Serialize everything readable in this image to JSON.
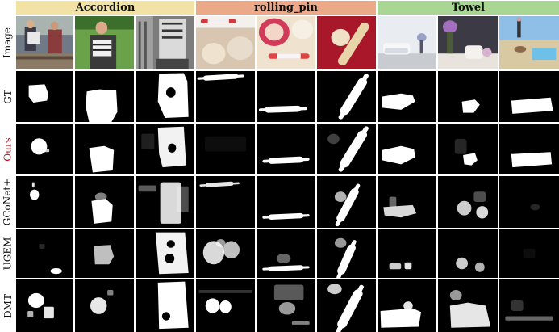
{
  "figure": {
    "groups": [
      {
        "label": "Accordion",
        "color": "#f3e2a6"
      },
      {
        "label": "rolling_pin",
        "color": "#eca98a"
      },
      {
        "label": "Towel",
        "color": "#a9d595"
      }
    ],
    "rows": [
      {
        "label": "Image",
        "color": "#111111"
      },
      {
        "label": "GT",
        "color": "#111111"
      },
      {
        "label": "Ours",
        "color": "#b4141b"
      },
      {
        "label": "GCoNet+",
        "color": "#111111"
      },
      {
        "label": "UGEM",
        "color": "#111111"
      },
      {
        "label": "DMT",
        "color": "#111111"
      }
    ]
  }
}
